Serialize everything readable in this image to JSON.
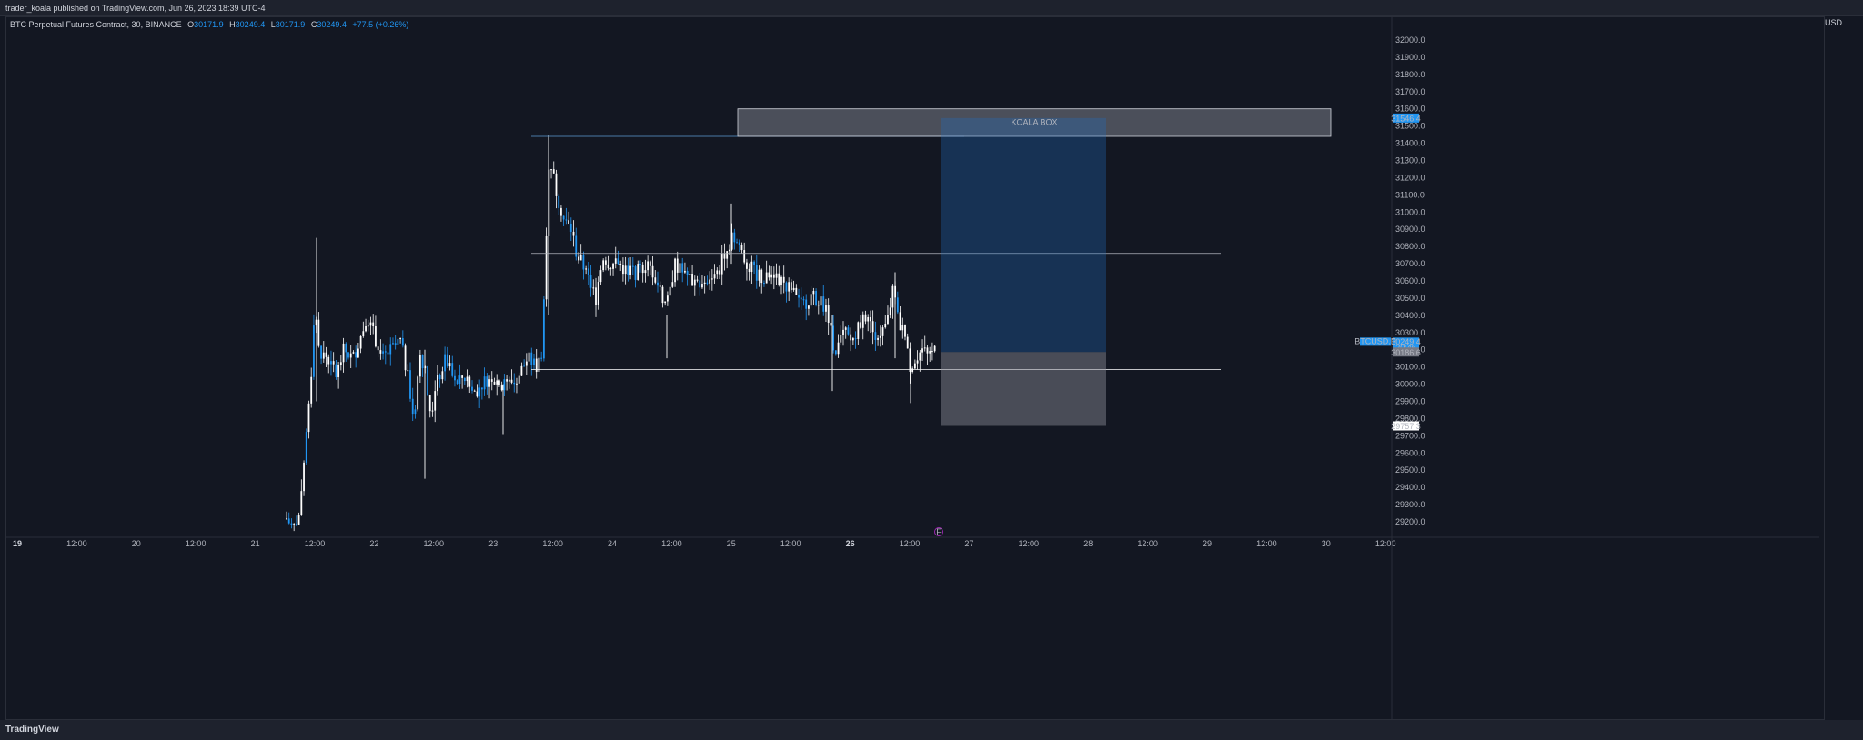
{
  "header": {
    "text": "trader_koala published on TradingView.com, Jun 26, 2023 18:39 UTC-4"
  },
  "legend": {
    "symbol": "BTC Perpetual Futures Contract, 30, BINANCE",
    "o_label": "O",
    "o": "30171.9",
    "h_label": "H",
    "h": "30249.4",
    "l_label": "L",
    "l": "30171.9",
    "c_label": "C",
    "c": "30249.4",
    "change": "+77.5 (+0.26%)"
  },
  "currency": "USD",
  "price_axis": [
    "32000.0",
    "31900.0",
    "31800.0",
    "31700.0",
    "31600.0",
    "31500.0",
    "31400.0",
    "31300.0",
    "31200.0",
    "31100.0",
    "31000.0",
    "30900.0",
    "30800.0",
    "30700.0",
    "30600.0",
    "30500.0",
    "30400.0",
    "30300.0",
    "30200.0",
    "30100.0",
    "30000.0",
    "29900.0",
    "29800.0",
    "29700.0",
    "29600.0",
    "29500.0",
    "29400.0",
    "29300.0",
    "29200.0"
  ],
  "time_axis": [
    {
      "t": "19",
      "bold": true
    },
    {
      "t": "12:00"
    },
    {
      "t": "20"
    },
    {
      "t": "12:00"
    },
    {
      "t": "21"
    },
    {
      "t": "12:00"
    },
    {
      "t": "22"
    },
    {
      "t": "12:00"
    },
    {
      "t": "23"
    },
    {
      "t": "12:00"
    },
    {
      "t": "24"
    },
    {
      "t": "12:00"
    },
    {
      "t": "25"
    },
    {
      "t": "12:00"
    },
    {
      "t": "26",
      "bold": true
    },
    {
      "t": "12:00"
    },
    {
      "t": "27"
    },
    {
      "t": "12:00"
    },
    {
      "t": "28"
    },
    {
      "t": "12:00"
    },
    {
      "t": "29"
    },
    {
      "t": "12:00"
    },
    {
      "t": "30"
    },
    {
      "t": "12:00"
    }
  ],
  "badges": {
    "target": "31546.4",
    "symbol": "BTCUSD.P",
    "last": "30249.4",
    "countdown": "20:46",
    "entry": "30186.6",
    "stop": "29757.3"
  },
  "annotation": {
    "box_label": "KOALA BOX"
  },
  "colors": {
    "bg": "#131722",
    "accent": "#2196f3",
    "candle": "#ffffff",
    "target_zone": "#1a3a5c",
    "stop_zone": "#4a4d56"
  },
  "chart_data": {
    "type": "candlestick",
    "symbol": "BTC Perpetual Futures Contract, 30, BINANCE",
    "x": [
      "19",
      "20",
      "21",
      "22",
      "23",
      "24",
      "25",
      "26",
      "27",
      "28",
      "29",
      "30"
    ],
    "ylim": [
      29150,
      32050
    ],
    "ohlc_last": {
      "open": 30171.9,
      "high": 30249.4,
      "low": 30171.9,
      "close": 30249.4
    },
    "horizontal_levels": [
      31440,
      30760,
      30085
    ],
    "koala_box": {
      "from": 31440,
      "to": 31600,
      "label": "KOALA BOX"
    },
    "position": {
      "entry": 30186.6,
      "target": 31546.4,
      "stop": 29757.3
    }
  }
}
